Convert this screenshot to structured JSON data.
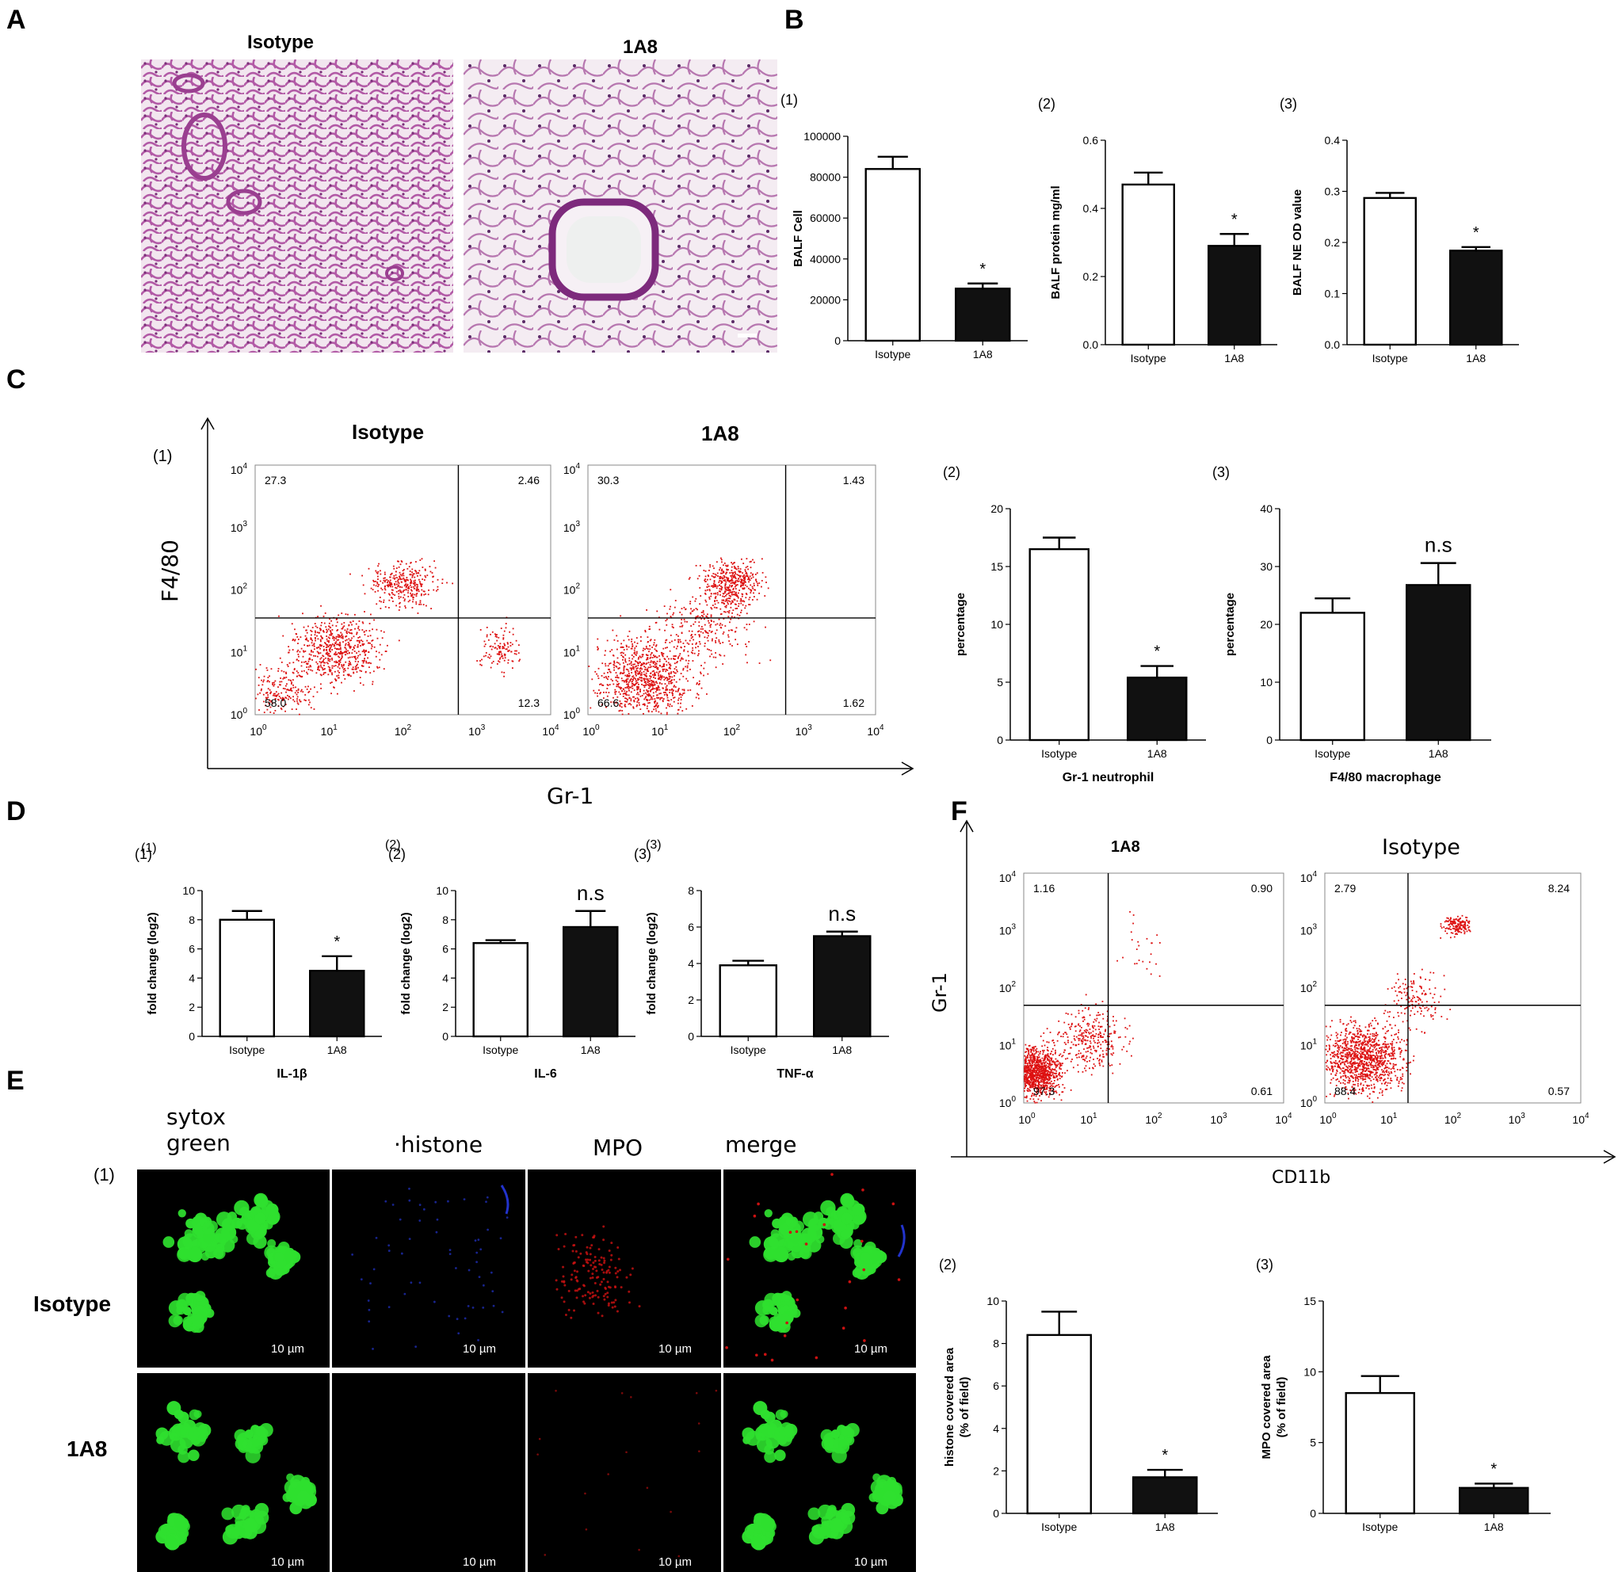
{
  "colors": {
    "isotype_bar": "#ffffff",
    "treatment_bar": "#111111",
    "dot": "#dd1111",
    "he_stain": "#b25aa6",
    "sytox": "#2fe02f",
    "histone": "#2233cc",
    "mpo": "#cc1111"
  },
  "panels": {
    "A": "A",
    "B": "B",
    "C": "C",
    "D": "D",
    "E": "E",
    "F": "F"
  },
  "panelA": {
    "left_title": "Isotype",
    "right_title": "1A8"
  },
  "panelC": {
    "sub1": "(1)",
    "title_isotype": "Isotype",
    "title_1a8": "1A8",
    "y_axis": "F4/80",
    "x_axis": "Gr-1"
  },
  "panelD": {
    "sub1": "(1)",
    "sub2": "(2)",
    "sub3": "(3)"
  },
  "panelE": {
    "sub1": "(1)",
    "col_sytox": "sytox\ngreen",
    "col_histone": "·histone",
    "col_mpo": "MPO",
    "col_merge": "merge",
    "row_isotype": "Isotype",
    "row_1a8": "1A8",
    "scale": "10 µm"
  },
  "panelF": {
    "title_1a8": "1A8",
    "title_isotype": "Isotype",
    "y_axis": "Gr-1",
    "x_axis": "CD11b"
  },
  "chart_data": [
    {
      "id": "B1",
      "type": "bar",
      "panel_label": "(1)",
      "categories": [
        "Isotype",
        "1A8"
      ],
      "values": [
        84000,
        25500
      ],
      "errors": [
        6000,
        2500
      ],
      "sig": [
        "",
        "*"
      ],
      "ylabel": "BALF Cell",
      "xlabel": "",
      "ylim": [
        0,
        100000
      ],
      "ticks": [
        0,
        20000,
        40000,
        60000,
        80000,
        100000
      ]
    },
    {
      "id": "B2",
      "type": "bar",
      "panel_label": "(2)",
      "categories": [
        "Isotype",
        "1A8"
      ],
      "values": [
        0.47,
        0.29
      ],
      "errors": [
        0.035,
        0.035
      ],
      "sig": [
        "",
        "*"
      ],
      "ylabel": "BALF protein mg/ml",
      "xlabel": "",
      "ylim": [
        0,
        0.6
      ],
      "ticks": [
        "0.0",
        "0.2",
        "0.4",
        "0.6"
      ]
    },
    {
      "id": "B3",
      "type": "bar",
      "panel_label": "(3)",
      "categories": [
        "Isotype",
        "1A8"
      ],
      "values": [
        0.287,
        0.184
      ],
      "errors": [
        0.01,
        0.007
      ],
      "sig": [
        "",
        "*"
      ],
      "ylabel": "BALF NE   OD value",
      "xlabel": "",
      "ylim": [
        0,
        0.4
      ],
      "ticks": [
        "0.0",
        "0.1",
        "0.2",
        "0.3",
        "0.4"
      ]
    },
    {
      "id": "C2",
      "type": "bar",
      "panel_label": "(2)",
      "categories": [
        "Isotype",
        "1A8"
      ],
      "values": [
        16.5,
        5.4
      ],
      "errors": [
        1.0,
        1.0
      ],
      "sig": [
        "",
        "*"
      ],
      "ylabel": "percentage",
      "xlabel": "Gr-1 neutrophil",
      "ylim": [
        0,
        20
      ],
      "ticks": [
        0,
        5,
        10,
        15,
        20
      ]
    },
    {
      "id": "C3",
      "type": "bar",
      "panel_label": "(3)",
      "categories": [
        "Isotype",
        "1A8"
      ],
      "values": [
        22,
        26.8
      ],
      "errors": [
        2.5,
        3.8
      ],
      "sig": [
        "",
        "n.s"
      ],
      "ylabel": "percentage",
      "xlabel": "F4/80 macrophage",
      "ylim": [
        0,
        40
      ],
      "ticks": [
        0,
        10,
        20,
        30,
        40
      ]
    },
    {
      "id": "D1",
      "type": "bar",
      "panel_label": "(1)",
      "categories": [
        "Isotype",
        "1A8"
      ],
      "values": [
        8.0,
        4.5
      ],
      "errors": [
        0.6,
        1.0
      ],
      "sig": [
        "",
        "*"
      ],
      "ylabel": "fold change (log2)",
      "xlabel": "IL-1β",
      "ylim": [
        0,
        10
      ],
      "ticks": [
        0,
        2,
        4,
        6,
        8,
        10
      ]
    },
    {
      "id": "D2",
      "type": "bar",
      "panel_label": "(2)",
      "categories": [
        "Isotype",
        "1A8"
      ],
      "values": [
        6.4,
        7.5
      ],
      "errors": [
        0.2,
        1.1
      ],
      "sig": [
        "",
        "n.s"
      ],
      "ylabel": "fold change (log2)",
      "xlabel": "IL-6",
      "ylim": [
        0,
        10
      ],
      "ticks": [
        0,
        2,
        4,
        6,
        8,
        10
      ]
    },
    {
      "id": "D3",
      "type": "bar",
      "panel_label": "(3)",
      "categories": [
        "Isotype",
        "1A8"
      ],
      "values": [
        3.9,
        5.5
      ],
      "errors": [
        0.25,
        0.25
      ],
      "sig": [
        "",
        "n.s"
      ],
      "ylabel": "fold change (log2)",
      "xlabel": "TNF-α",
      "ylim": [
        0,
        8
      ],
      "ticks": [
        0,
        2,
        4,
        6,
        8
      ]
    },
    {
      "id": "E2",
      "type": "bar",
      "panel_label": "(2)",
      "categories": [
        "Isotype",
        "1A8"
      ],
      "values": [
        8.4,
        1.7
      ],
      "errors": [
        1.1,
        0.35
      ],
      "sig": [
        "",
        "*"
      ],
      "ylabel": "histone covered area\n(% of field)",
      "xlabel": "",
      "ylim": [
        0,
        10
      ],
      "ticks": [
        0,
        2,
        4,
        6,
        8,
        10
      ]
    },
    {
      "id": "E3",
      "type": "bar",
      "panel_label": "(3)",
      "categories": [
        "Isotype",
        "1A8"
      ],
      "values": [
        8.5,
        1.8
      ],
      "errors": [
        1.2,
        0.3
      ],
      "sig": [
        "",
        "*"
      ],
      "ylabel": "MPO covered area\n(% of field)",
      "xlabel": "",
      "ylim": [
        0,
        15
      ],
      "ticks": [
        0,
        5,
        10,
        15
      ]
    },
    {
      "id": "C1a",
      "type": "scatter",
      "title": "Isotype",
      "xscale": "log",
      "yscale": "log",
      "quadrants": {
        "upper_left": "27.3",
        "upper_right": "2.46",
        "lower_left": "58.0",
        "lower_right": "12.3"
      }
    },
    {
      "id": "C1b",
      "type": "scatter",
      "title": "1A8",
      "xscale": "log",
      "yscale": "log",
      "quadrants": {
        "upper_left": "30.3",
        "upper_right": "1.43",
        "lower_left": "66.6",
        "lower_right": "1.62"
      }
    },
    {
      "id": "F1a",
      "type": "scatter",
      "title": "1A8",
      "xscale": "log",
      "yscale": "log",
      "quadrants": {
        "upper_left": "1.16",
        "upper_right": "0.90",
        "lower_left": "97.3",
        "lower_right": "0.61"
      }
    },
    {
      "id": "F1b",
      "type": "scatter",
      "title": "Isotype",
      "xscale": "log",
      "yscale": "log",
      "quadrants": {
        "upper_left": "2.79",
        "upper_right": "8.24",
        "lower_left": "88.4",
        "lower_right": "0.57"
      }
    }
  ]
}
